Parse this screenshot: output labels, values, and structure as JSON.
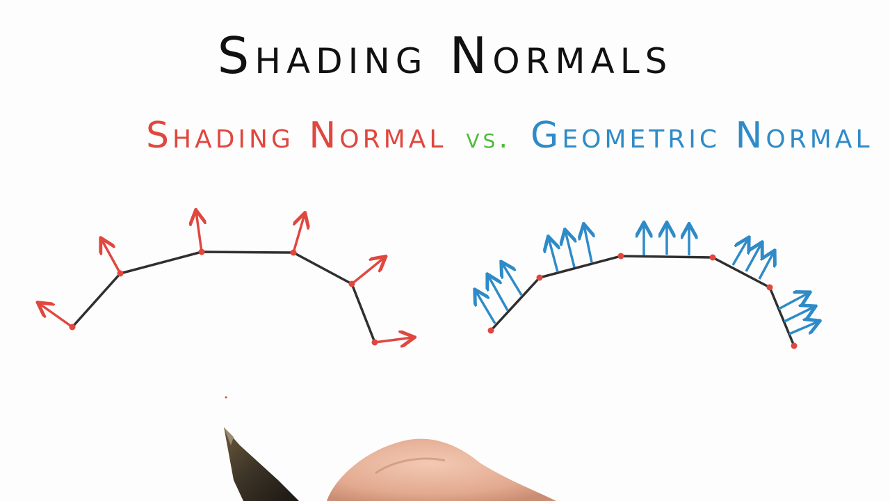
{
  "title": "Shading Normals",
  "subtitle": {
    "shading": "Shading Normal",
    "vs": "vs.",
    "geometric": "Geometric Normal"
  },
  "colors": {
    "shading": "#e0473f",
    "vs": "#4dbb3a",
    "geometric": "#2e8bc8",
    "curve": "#2f2f2f"
  }
}
